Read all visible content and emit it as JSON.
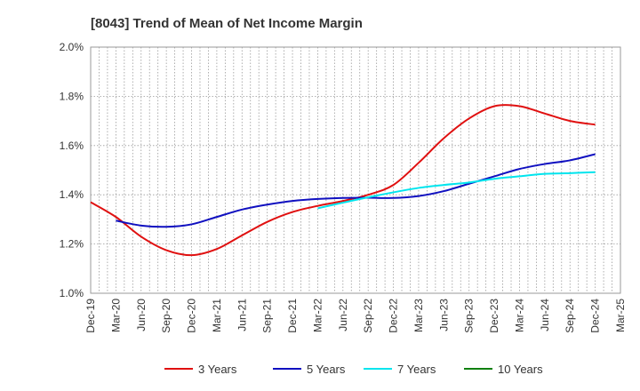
{
  "chart_data": {
    "type": "line",
    "title": "[8043]  Trend of Mean of Net Income Margin",
    "xlabel": "",
    "ylabel": "",
    "x_ticks": [
      "Dec-19",
      "Mar-20",
      "Jun-20",
      "Sep-20",
      "Dec-20",
      "Mar-21",
      "Jun-21",
      "Sep-21",
      "Dec-21",
      "Mar-22",
      "Jun-22",
      "Sep-22",
      "Dec-22",
      "Mar-23",
      "Jun-23",
      "Sep-23",
      "Dec-23",
      "Mar-24",
      "Jun-24",
      "Sep-24",
      "Dec-24",
      "Mar-25"
    ],
    "y_ticks": [
      "1.0%",
      "1.2%",
      "1.4%",
      "1.6%",
      "1.8%",
      "2.0%"
    ],
    "ylim": [
      1.0,
      2.0
    ],
    "grid": true,
    "legend_position": "bottom",
    "series": [
      {
        "name": "3 Years",
        "color": "#e01010",
        "x": [
          "Dec-19",
          "Mar-20",
          "Jun-20",
          "Sep-20",
          "Dec-20",
          "Mar-21",
          "Jun-21",
          "Sep-21",
          "Dec-21",
          "Mar-22",
          "Jun-22",
          "Sep-22",
          "Dec-22",
          "Mar-23",
          "Jun-23",
          "Sep-23",
          "Dec-23",
          "Mar-24",
          "Jun-24",
          "Sep-24",
          "Dec-24"
        ],
        "values": [
          1.37,
          1.31,
          1.23,
          1.175,
          1.155,
          1.18,
          1.235,
          1.29,
          1.33,
          1.355,
          1.375,
          1.4,
          1.44,
          1.53,
          1.63,
          1.71,
          1.76,
          1.76,
          1.73,
          1.7,
          1.685
        ]
      },
      {
        "name": "5 Years",
        "color": "#1010c0",
        "x": [
          "Mar-20",
          "Jun-20",
          "Sep-20",
          "Dec-20",
          "Mar-21",
          "Jun-21",
          "Sep-21",
          "Dec-21",
          "Mar-22",
          "Jun-22",
          "Sep-22",
          "Dec-22",
          "Mar-23",
          "Jun-23",
          "Sep-23",
          "Dec-23",
          "Mar-24",
          "Jun-24",
          "Sep-24",
          "Dec-24"
        ],
        "values": [
          1.295,
          1.275,
          1.27,
          1.28,
          1.31,
          1.34,
          1.36,
          1.375,
          1.383,
          1.387,
          1.388,
          1.387,
          1.395,
          1.415,
          1.445,
          1.475,
          1.505,
          1.525,
          1.54,
          1.565
        ]
      },
      {
        "name": "7 Years",
        "color": "#00e5ee",
        "x": [
          "Mar-22",
          "Jun-22",
          "Sep-22",
          "Dec-22",
          "Mar-23",
          "Jun-23",
          "Sep-23",
          "Dec-23",
          "Mar-24",
          "Jun-24",
          "Sep-24",
          "Dec-24"
        ],
        "values": [
          1.345,
          1.368,
          1.39,
          1.41,
          1.428,
          1.44,
          1.45,
          1.465,
          1.475,
          1.485,
          1.488,
          1.492
        ]
      },
      {
        "name": "10 Years",
        "color": "#108010",
        "x": [],
        "values": []
      }
    ]
  }
}
